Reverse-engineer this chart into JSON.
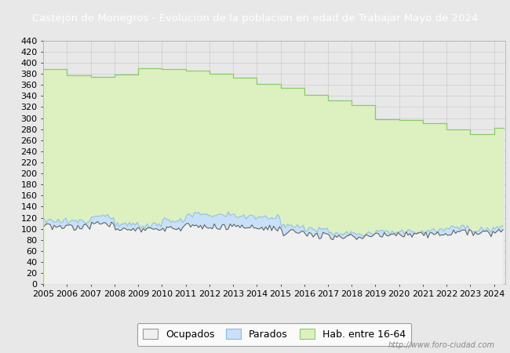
{
  "title": "Castejón de Monegros - Evolucion de la poblacion en edad de Trabajar Mayo de 2024",
  "title_bg": "#5b9bd5",
  "title_color": "white",
  "title_fontsize": 9.5,
  "ylim": [
    0,
    440
  ],
  "ytick_step": 20,
  "years": [
    2005,
    2006,
    2007,
    2008,
    2009,
    2010,
    2011,
    2012,
    2013,
    2014,
    2015,
    2016,
    2017,
    2018,
    2019,
    2020,
    2021,
    2022,
    2023,
    2024
  ],
  "hab_16_64": [
    388,
    378,
    375,
    379,
    390,
    388,
    386,
    380,
    373,
    362,
    355,
    342,
    332,
    324,
    298,
    296,
    291,
    279,
    271,
    283
  ],
  "parados_upper": [
    115,
    113,
    122,
    108,
    106,
    116,
    126,
    126,
    122,
    122,
    106,
    98,
    92,
    92,
    94,
    95,
    97,
    102,
    99,
    102
  ],
  "ocupados": [
    104,
    103,
    109,
    100,
    98,
    101,
    105,
    104,
    103,
    101,
    93,
    88,
    85,
    85,
    88,
    89,
    89,
    94,
    91,
    94
  ],
  "legend_labels": [
    "Ocupados",
    "Parados",
    "Hab. entre 16-64"
  ],
  "hab_fill_color": "#ddf0c0",
  "hab_line_color": "#88cc66",
  "parados_fill_color": "#c8e0f8",
  "parados_line_color": "#88bbee",
  "ocupados_fill_color": "#f0f0f0",
  "ocupados_line_color": "#555555",
  "watermark": "http://www.foro-ciudad.com",
  "fig_bg": "#e8e8e8",
  "plot_bg": "#e8e8e8",
  "grid_color": "#cccccc",
  "fontsize_ticks": 8,
  "end_month": 5
}
